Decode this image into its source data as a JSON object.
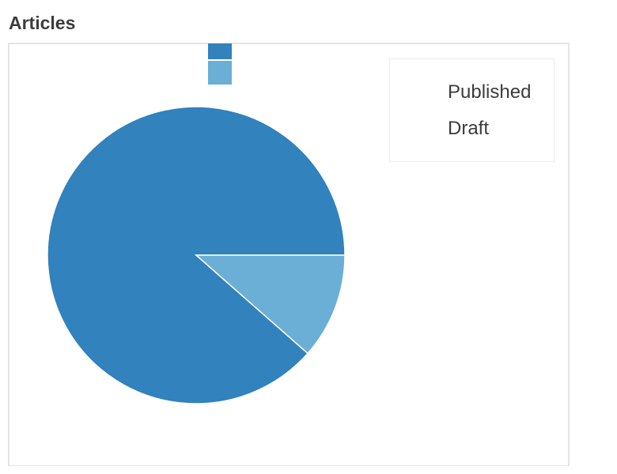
{
  "chart_data": {
    "type": "pie",
    "title": "Articles",
    "legend_position": "top-right",
    "slices": [
      {
        "label": "Published",
        "value": 88.5,
        "color": "#3182bd"
      },
      {
        "label": "Draft",
        "value": 11.5,
        "color": "#6baed6"
      }
    ]
  }
}
